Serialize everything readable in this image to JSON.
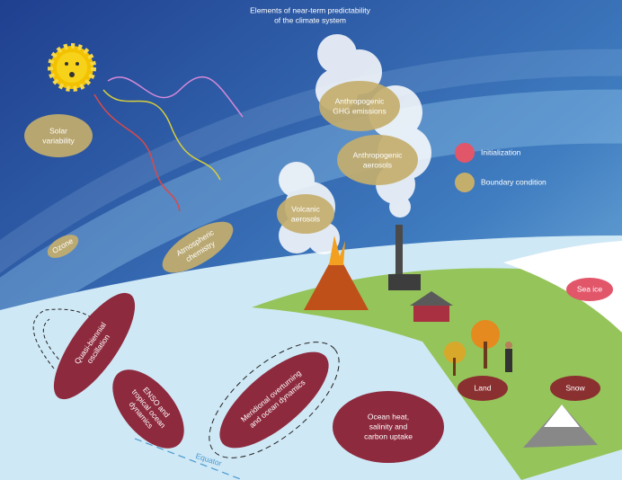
{
  "header": {
    "title_lines": [
      "Elements of near-term predictability",
      "of the climate system"
    ]
  },
  "legend": {
    "items": [
      {
        "label": "Initialization"
      },
      {
        "label": "Boundary condition"
      }
    ]
  },
  "nodes": [
    {
      "lines": [
        "Solar",
        "variability"
      ]
    },
    {
      "lines": [
        "Ozone"
      ]
    },
    {
      "lines": [
        "Atmospheric",
        "chemistry"
      ]
    },
    {
      "lines": [
        "Anthropogenic",
        "GHG emissions"
      ]
    },
    {
      "lines": [
        "Anthropogenic",
        "aerosols"
      ]
    },
    {
      "lines": [
        "Volcanic",
        "aerosols"
      ]
    },
    {
      "lines": [
        "Quasi-biennial",
        "oscillation"
      ]
    },
    {
      "lines": [
        "ENSO and",
        "tropical ocean",
        "dynamics"
      ]
    },
    {
      "lines": [
        "Meridional overturning",
        "and ocean dynamics"
      ]
    },
    {
      "lines": [
        "Ocean heat,",
        "salinity and",
        "carbon uptake"
      ]
    },
    {
      "lines": [
        "Land"
      ]
    },
    {
      "lines": [
        "Snow"
      ]
    },
    {
      "lines": [
        "Sea ice"
      ]
    },
    {
      "lines": [
        "Equator"
      ]
    }
  ]
}
